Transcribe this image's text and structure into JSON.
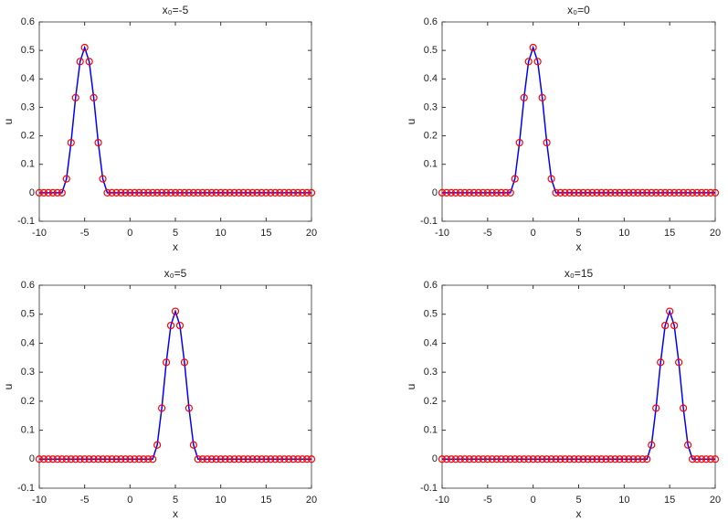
{
  "chart_data": [
    {
      "type": "line",
      "title": "x₀=-5",
      "xlabel": "x",
      "ylabel": "u",
      "x": [
        -10,
        -9.5,
        -9,
        -8.5,
        -8,
        -7.5,
        -7,
        -6.5,
        -6,
        -5.5,
        -5,
        -4.5,
        -4,
        -3.5,
        -3,
        -2.5,
        -2,
        -1.5,
        -1,
        -0.5,
        0,
        0.5,
        1,
        1.5,
        2,
        2.5,
        3,
        3.5,
        4,
        4.5,
        5,
        5.5,
        6,
        6.5,
        7,
        7.5,
        8,
        8.5,
        9,
        9.5,
        10,
        10.5,
        11,
        11.5,
        12,
        12.5,
        13,
        13.5,
        14,
        14.5,
        15,
        15.5,
        16,
        16.5,
        17,
        17.5,
        18,
        18.5,
        19,
        19.5,
        20
      ],
      "series": [
        {
          "color": "#0000ff",
          "marker_color": "#ff0000",
          "values": [
            0,
            0,
            0,
            0,
            0,
            0,
            0.049,
            0.176,
            0.334,
            0.461,
            0.51,
            0.461,
            0.334,
            0.176,
            0.049,
            0,
            0,
            0,
            0,
            0,
            0,
            0,
            0,
            0,
            0,
            0,
            0,
            0,
            0,
            0,
            0,
            0,
            0,
            0,
            0,
            0,
            0,
            0,
            0,
            0,
            0,
            0,
            0,
            0,
            0,
            0,
            0,
            0,
            0,
            0,
            0,
            0,
            0,
            0,
            0,
            0,
            0,
            0,
            0,
            0,
            0
          ]
        }
      ],
      "xlim": [
        -10,
        20
      ],
      "xticks": [
        -10,
        -5,
        0,
        5,
        10,
        15,
        20
      ],
      "ylim": [
        -0.1,
        0.6
      ],
      "yticks": [
        -0.1,
        0,
        0.1,
        0.2,
        0.3,
        0.4,
        0.5,
        0.6
      ]
    },
    {
      "type": "line",
      "title": "x₀=0",
      "xlabel": "x",
      "ylabel": "u",
      "x": [
        -10,
        -9.5,
        -9,
        -8.5,
        -8,
        -7.5,
        -7,
        -6.5,
        -6,
        -5.5,
        -5,
        -4.5,
        -4,
        -3.5,
        -3,
        -2.5,
        -2,
        -1.5,
        -1,
        -0.5,
        0,
        0.5,
        1,
        1.5,
        2,
        2.5,
        3,
        3.5,
        4,
        4.5,
        5,
        5.5,
        6,
        6.5,
        7,
        7.5,
        8,
        8.5,
        9,
        9.5,
        10,
        10.5,
        11,
        11.5,
        12,
        12.5,
        13,
        13.5,
        14,
        14.5,
        15,
        15.5,
        16,
        16.5,
        17,
        17.5,
        18,
        18.5,
        19,
        19.5,
        20
      ],
      "series": [
        {
          "color": "#0000ff",
          "marker_color": "#ff0000",
          "values": [
            0,
            0,
            0,
            0,
            0,
            0,
            0,
            0,
            0,
            0,
            0,
            0,
            0,
            0,
            0,
            0,
            0.049,
            0.176,
            0.334,
            0.461,
            0.51,
            0.461,
            0.334,
            0.176,
            0.049,
            0,
            0,
            0,
            0,
            0,
            0,
            0,
            0,
            0,
            0,
            0,
            0,
            0,
            0,
            0,
            0,
            0,
            0,
            0,
            0,
            0,
            0,
            0,
            0,
            0,
            0,
            0,
            0,
            0,
            0,
            0,
            0,
            0,
            0,
            0,
            0
          ]
        }
      ],
      "xlim": [
        -10,
        20
      ],
      "xticks": [
        -10,
        -5,
        0,
        5,
        10,
        15,
        20
      ],
      "ylim": [
        -0.1,
        0.6
      ],
      "yticks": [
        -0.1,
        0,
        0.1,
        0.2,
        0.3,
        0.4,
        0.5,
        0.6
      ]
    },
    {
      "type": "line",
      "title": "x₀=5",
      "xlabel": "x",
      "ylabel": "u",
      "x": [
        -10,
        -9.5,
        -9,
        -8.5,
        -8,
        -7.5,
        -7,
        -6.5,
        -6,
        -5.5,
        -5,
        -4.5,
        -4,
        -3.5,
        -3,
        -2.5,
        -2,
        -1.5,
        -1,
        -0.5,
        0,
        0.5,
        1,
        1.5,
        2,
        2.5,
        3,
        3.5,
        4,
        4.5,
        5,
        5.5,
        6,
        6.5,
        7,
        7.5,
        8,
        8.5,
        9,
        9.5,
        10,
        10.5,
        11,
        11.5,
        12,
        12.5,
        13,
        13.5,
        14,
        14.5,
        15,
        15.5,
        16,
        16.5,
        17,
        17.5,
        18,
        18.5,
        19,
        19.5,
        20
      ],
      "series": [
        {
          "color": "#0000ff",
          "marker_color": "#ff0000",
          "values": [
            0,
            0,
            0,
            0,
            0,
            0,
            0,
            0,
            0,
            0,
            0,
            0,
            0,
            0,
            0,
            0,
            0,
            0,
            0,
            0,
            0,
            0,
            0,
            0,
            0,
            0,
            0.049,
            0.176,
            0.334,
            0.461,
            0.51,
            0.461,
            0.334,
            0.176,
            0.049,
            0,
            0,
            0,
            0,
            0,
            0,
            0,
            0,
            0,
            0,
            0,
            0,
            0,
            0,
            0,
            0,
            0,
            0,
            0,
            0,
            0,
            0,
            0,
            0,
            0,
            0
          ]
        }
      ],
      "xlim": [
        -10,
        20
      ],
      "xticks": [
        -10,
        -5,
        0,
        5,
        10,
        15,
        20
      ],
      "ylim": [
        -0.1,
        0.6
      ],
      "yticks": [
        -0.1,
        0,
        0.1,
        0.2,
        0.3,
        0.4,
        0.5,
        0.6
      ]
    },
    {
      "type": "line",
      "title": "x₀=15",
      "xlabel": "x",
      "ylabel": "u",
      "x": [
        -10,
        -9.5,
        -9,
        -8.5,
        -8,
        -7.5,
        -7,
        -6.5,
        -6,
        -5.5,
        -5,
        -4.5,
        -4,
        -3.5,
        -3,
        -2.5,
        -2,
        -1.5,
        -1,
        -0.5,
        0,
        0.5,
        1,
        1.5,
        2,
        2.5,
        3,
        3.5,
        4,
        4.5,
        5,
        5.5,
        6,
        6.5,
        7,
        7.5,
        8,
        8.5,
        9,
        9.5,
        10,
        10.5,
        11,
        11.5,
        12,
        12.5,
        13,
        13.5,
        14,
        14.5,
        15,
        15.5,
        16,
        16.5,
        17,
        17.5,
        18,
        18.5,
        19,
        19.5,
        20
      ],
      "series": [
        {
          "color": "#0000ff",
          "marker_color": "#ff0000",
          "values": [
            0,
            0,
            0,
            0,
            0,
            0,
            0,
            0,
            0,
            0,
            0,
            0,
            0,
            0,
            0,
            0,
            0,
            0,
            0,
            0,
            0,
            0,
            0,
            0,
            0,
            0,
            0,
            0,
            0,
            0,
            0,
            0,
            0,
            0,
            0,
            0,
            0,
            0,
            0,
            0,
            0,
            0,
            0,
            0,
            0,
            0,
            0.049,
            0.176,
            0.334,
            0.461,
            0.51,
            0.461,
            0.334,
            0.176,
            0.049,
            0,
            0,
            0,
            0,
            0,
            0
          ]
        }
      ],
      "xlim": [
        -10,
        20
      ],
      "xticks": [
        -10,
        -5,
        0,
        5,
        10,
        15,
        20
      ],
      "ylim": [
        -0.1,
        0.6
      ],
      "yticks": [
        -0.1,
        0,
        0.1,
        0.2,
        0.3,
        0.4,
        0.5,
        0.6
      ]
    }
  ]
}
